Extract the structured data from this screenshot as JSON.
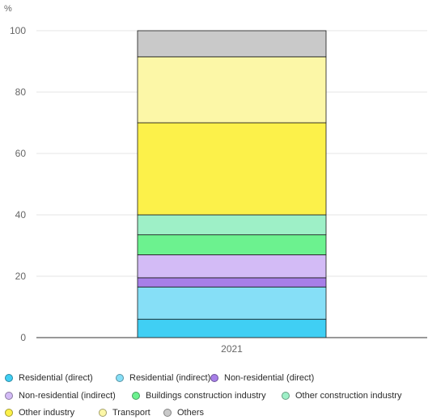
{
  "chart_data": {
    "type": "bar",
    "stacked": true,
    "unit": "%",
    "categories": [
      "2021"
    ],
    "ylim": [
      0,
      100
    ],
    "yticks": [
      0,
      20,
      40,
      60,
      80,
      100
    ],
    "grid": true,
    "legend_position": "bottom",
    "series": [
      {
        "name": "Residential (direct)",
        "values": [
          6
        ],
        "color": "#40CFF4"
      },
      {
        "name": "Residential (indirect)",
        "values": [
          10.5
        ],
        "color": "#86DFF7"
      },
      {
        "name": "Non-residential (direct)",
        "values": [
          3
        ],
        "color": "#A77FE8"
      },
      {
        "name": "Non-residential (indirect)",
        "values": [
          7.5
        ],
        "color": "#D3BBF6"
      },
      {
        "name": "Buildings construction industry",
        "values": [
          6.5
        ],
        "color": "#6CF28F"
      },
      {
        "name": "Other construction industry",
        "values": [
          6.5
        ],
        "color": "#9EF0C7"
      },
      {
        "name": "Other industry",
        "values": [
          30
        ],
        "color": "#FCF14A"
      },
      {
        "name": "Transport",
        "values": [
          21.5
        ],
        "color": "#FCF7A7"
      },
      {
        "name": "Others",
        "values": [
          8.5
        ],
        "color": "#C9C9C9"
      }
    ]
  }
}
